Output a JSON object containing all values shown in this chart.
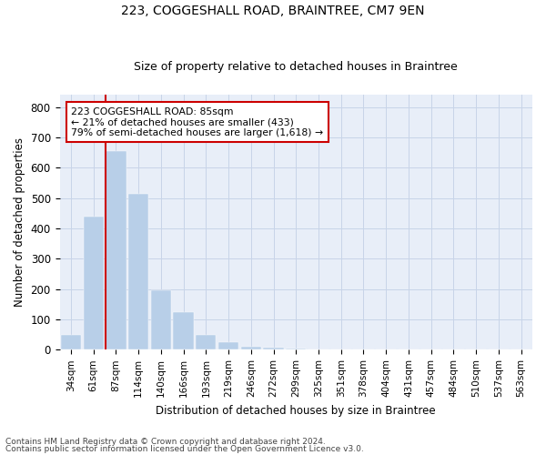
{
  "title1": "223, COGGESHALL ROAD, BRAINTREE, CM7 9EN",
  "title2": "Size of property relative to detached houses in Braintree",
  "xlabel": "Distribution of detached houses by size in Braintree",
  "ylabel": "Number of detached properties",
  "categories": [
    "34sqm",
    "61sqm",
    "87sqm",
    "114sqm",
    "140sqm",
    "166sqm",
    "193sqm",
    "219sqm",
    "246sqm",
    "272sqm",
    "299sqm",
    "325sqm",
    "351sqm",
    "378sqm",
    "404sqm",
    "431sqm",
    "457sqm",
    "484sqm",
    "510sqm",
    "537sqm",
    "563sqm"
  ],
  "values": [
    50,
    440,
    655,
    515,
    195,
    125,
    50,
    25,
    10,
    8,
    5,
    0,
    0,
    0,
    0,
    0,
    0,
    0,
    0,
    0,
    0
  ],
  "bar_color": "#b8cfe8",
  "bar_edgecolor": "#b8cfe8",
  "grid_color": "#c8d4e8",
  "bg_color": "#e8eef8",
  "vline_color": "#cc0000",
  "annotation_text": "223 COGGESHALL ROAD: 85sqm\n← 21% of detached houses are smaller (433)\n79% of semi-detached houses are larger (1,618) →",
  "annotation_box_color": "#cc0000",
  "ylim": [
    0,
    840
  ],
  "yticks": [
    0,
    100,
    200,
    300,
    400,
    500,
    600,
    700,
    800
  ],
  "footer1": "Contains HM Land Registry data © Crown copyright and database right 2024.",
  "footer2": "Contains public sector information licensed under the Open Government Licence v3.0."
}
